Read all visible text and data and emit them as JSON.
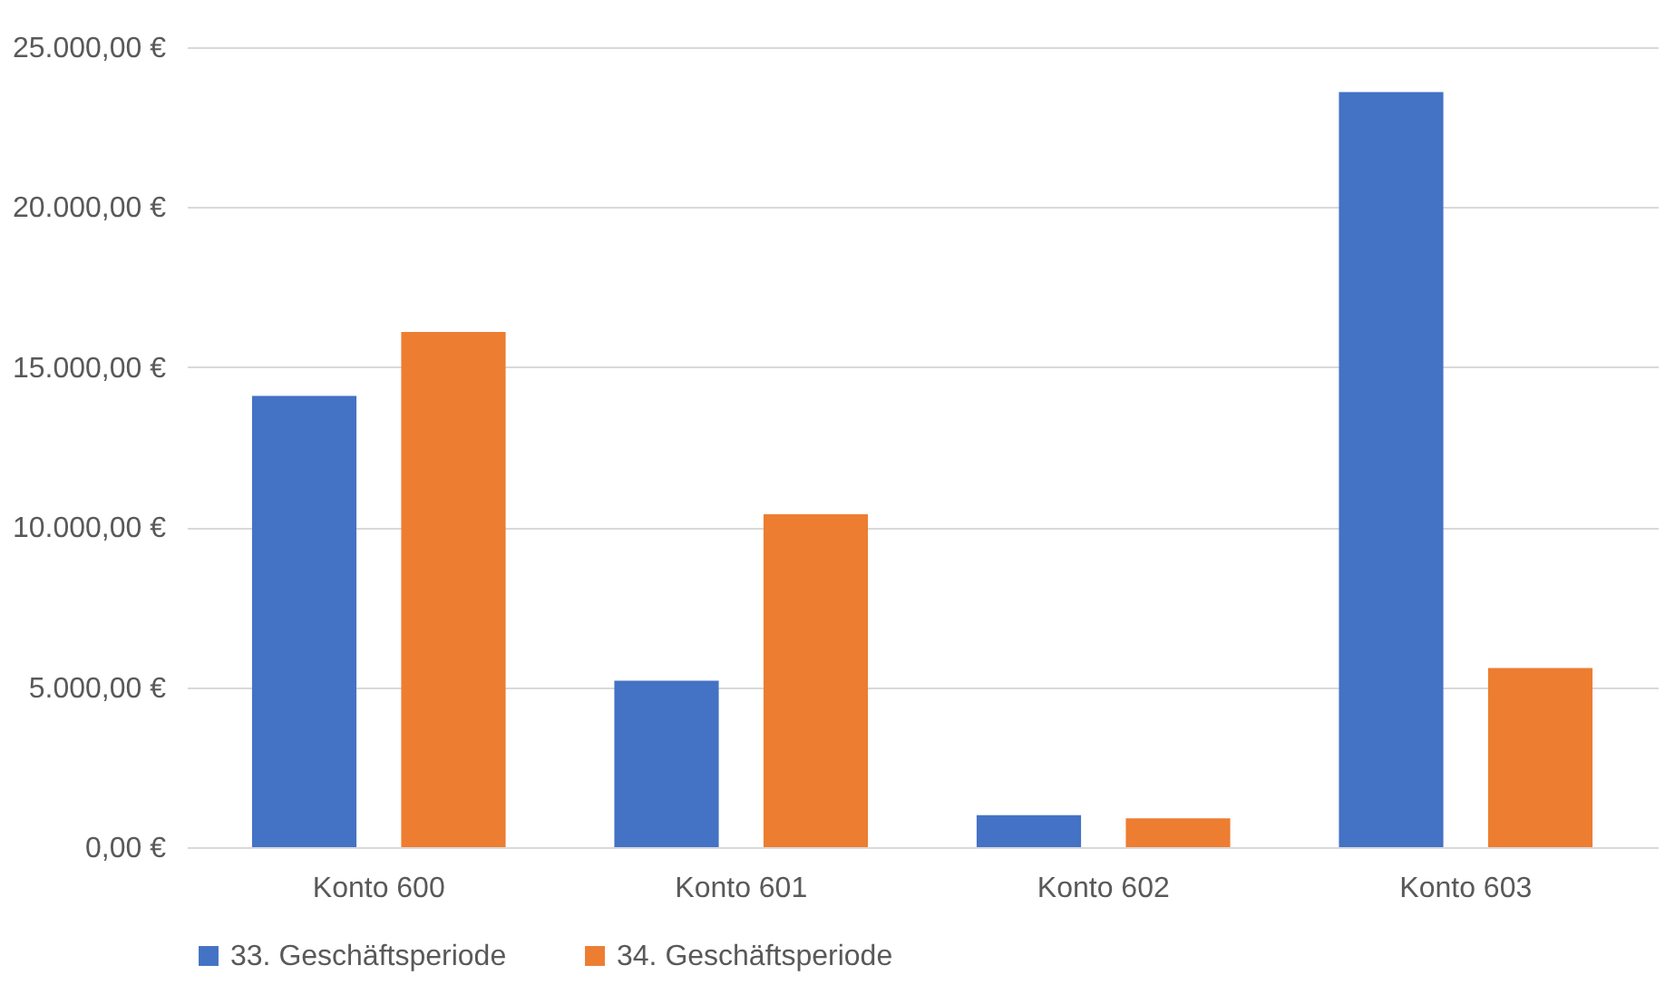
{
  "chart_data": {
    "type": "bar",
    "categories": [
      "Konto 600",
      "Konto 601",
      "Konto 602",
      "Konto 603"
    ],
    "series": [
      {
        "name": "33. Geschäftsperiode",
        "color": "#4472c4",
        "values": [
          14100,
          5200,
          1000,
          23600
        ]
      },
      {
        "name": "34. Geschäftsperiode",
        "color": "#ed7d31",
        "values": [
          16100,
          10400,
          900,
          5600
        ]
      }
    ],
    "ylim": [
      0,
      25000
    ],
    "yticks": [
      {
        "value": 0,
        "label": "0,00 €"
      },
      {
        "value": 5000,
        "label": "5.000,00 €"
      },
      {
        "value": 10000,
        "label": "10.000,00 €"
      },
      {
        "value": 15000,
        "label": "15.000,00 €"
      },
      {
        "value": 20000,
        "label": "20.000,00 €"
      },
      {
        "value": 25000,
        "label": "25.000,00 €"
      }
    ],
    "grid": "y",
    "legend": "bottom"
  }
}
